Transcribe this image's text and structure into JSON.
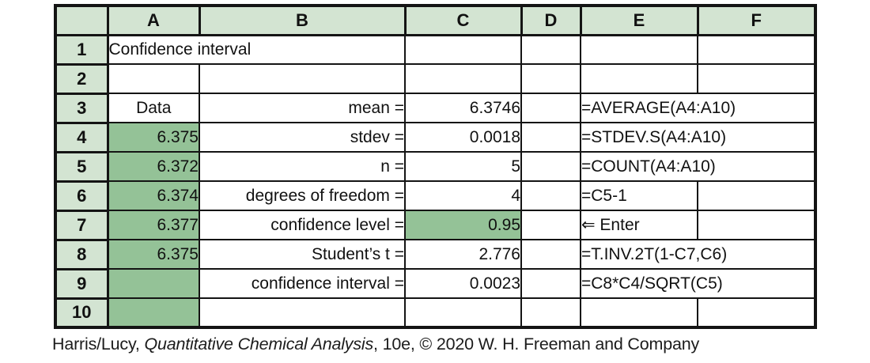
{
  "spreadsheet": {
    "column_headers": [
      "A",
      "B",
      "C",
      "D",
      "E",
      "F"
    ],
    "rows": [
      {
        "num": "1",
        "cells": [
          {
            "col": "A",
            "text": "Confidence interval",
            "span": 2,
            "align": "left"
          },
          {
            "col": "C",
            "text": ""
          },
          {
            "col": "D",
            "text": ""
          },
          {
            "col": "E",
            "text": ""
          },
          {
            "col": "F",
            "text": ""
          }
        ]
      },
      {
        "num": "2",
        "cells": [
          {
            "col": "A",
            "text": ""
          },
          {
            "col": "B",
            "text": ""
          },
          {
            "col": "C",
            "text": ""
          },
          {
            "col": "D",
            "text": ""
          },
          {
            "col": "E",
            "text": ""
          },
          {
            "col": "F",
            "text": ""
          }
        ]
      },
      {
        "num": "3",
        "cells": [
          {
            "col": "A",
            "text": "Data",
            "align": "center"
          },
          {
            "col": "B",
            "text": "mean ="
          },
          {
            "col": "C",
            "text": "6.3746"
          },
          {
            "col": "D",
            "text": ""
          },
          {
            "col": "E",
            "text": "=AVERAGE(A4:A10)",
            "span": 2
          }
        ]
      },
      {
        "num": "4",
        "cells": [
          {
            "col": "A",
            "text": "6.375",
            "green": true
          },
          {
            "col": "B",
            "text": "stdev ="
          },
          {
            "col": "C",
            "text": "0.0018"
          },
          {
            "col": "D",
            "text": ""
          },
          {
            "col": "E",
            "text": "=STDEV.S(A4:A10)",
            "span": 2
          }
        ]
      },
      {
        "num": "5",
        "cells": [
          {
            "col": "A",
            "text": "6.372",
            "green": true
          },
          {
            "col": "B",
            "text": "n ="
          },
          {
            "col": "C",
            "text": "5"
          },
          {
            "col": "D",
            "text": ""
          },
          {
            "col": "E",
            "text": "=COUNT(A4:A10)",
            "span": 2
          }
        ]
      },
      {
        "num": "6",
        "cells": [
          {
            "col": "A",
            "text": "6.374",
            "green": true
          },
          {
            "col": "B",
            "text": "degrees of freedom ="
          },
          {
            "col": "C",
            "text": "4"
          },
          {
            "col": "D",
            "text": ""
          },
          {
            "col": "E",
            "text": "=C5-1"
          },
          {
            "col": "F",
            "text": ""
          }
        ]
      },
      {
        "num": "7",
        "cells": [
          {
            "col": "A",
            "text": "6.377",
            "green": true
          },
          {
            "col": "B",
            "text": "confidence level ="
          },
          {
            "col": "C",
            "text": "0.95",
            "selected": true
          },
          {
            "col": "D",
            "text": ""
          },
          {
            "col": "E",
            "text": "⇐ Enter"
          },
          {
            "col": "F",
            "text": ""
          }
        ]
      },
      {
        "num": "8",
        "cells": [
          {
            "col": "A",
            "text": "6.375",
            "green": true
          },
          {
            "col": "B",
            "text": "Student’s t ="
          },
          {
            "col": "C",
            "text": "2.776"
          },
          {
            "col": "D",
            "text": ""
          },
          {
            "col": "E",
            "text": "=T.INV.2T(1-C7,C6)",
            "span": 2
          }
        ]
      },
      {
        "num": "9",
        "cells": [
          {
            "col": "A",
            "text": "",
            "green": true
          },
          {
            "col": "B",
            "text": "confidence interval ="
          },
          {
            "col": "C",
            "text": "0.0023"
          },
          {
            "col": "D",
            "text": ""
          },
          {
            "col": "E",
            "text": "=C8*C4/SQRT(C5)",
            "span": 2
          }
        ]
      },
      {
        "num": "10",
        "cells": [
          {
            "col": "A",
            "text": "",
            "green": true
          },
          {
            "col": "B",
            "text": ""
          },
          {
            "col": "C",
            "text": ""
          },
          {
            "col": "D",
            "text": ""
          },
          {
            "col": "E",
            "text": ""
          },
          {
            "col": "F",
            "text": ""
          }
        ]
      }
    ]
  },
  "caption": {
    "prefix": "Harris/Lucy, ",
    "title": "Quantitative Chemical Analysis",
    "suffix": ", 10e, © 2020 W. H. Freeman and Company"
  },
  "colors": {
    "header_fill": "#d3e4d2",
    "data_fill": "#94c297",
    "grid_line": "#141414"
  }
}
